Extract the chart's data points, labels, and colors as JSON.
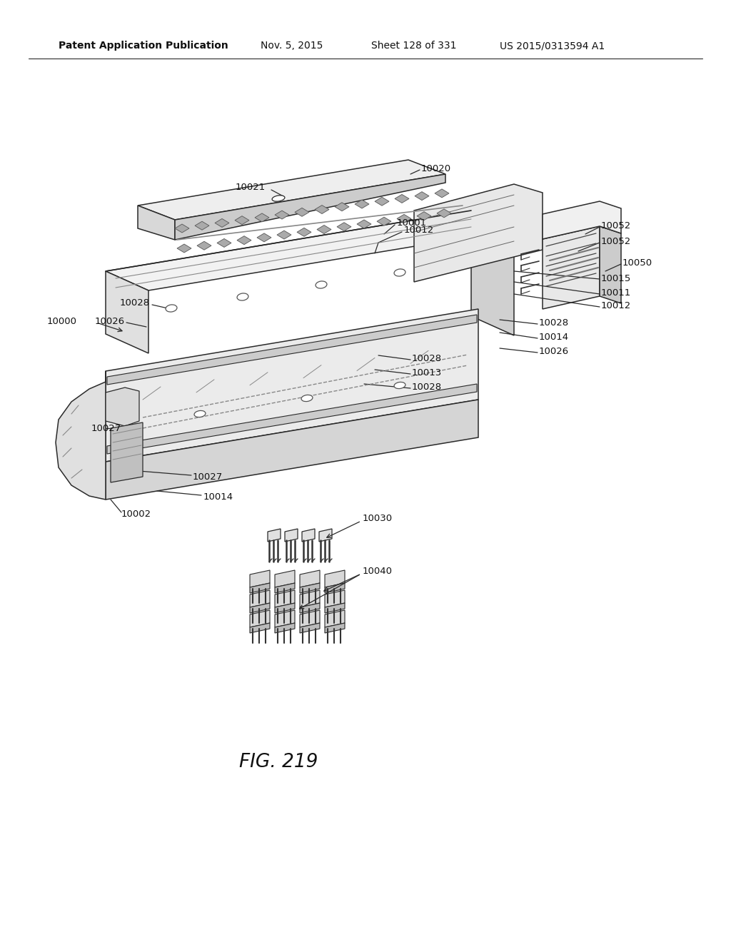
{
  "bg_color": "#ffffff",
  "line_color": "#2a2a2a",
  "fill_light": "#f5f5f5",
  "fill_mid": "#e8e8e8",
  "fill_dark": "#d0d0d0",
  "fill_darker": "#b8b8b8",
  "header_left": "Patent Application Publication",
  "header_date": "Nov. 5, 2015",
  "header_sheet": "Sheet 128 of 331",
  "header_patent": "US 2015/0313594 A1",
  "fig_label": "FIG. 219",
  "lfs": 9.5,
  "hfs": 10,
  "figfs": 19
}
